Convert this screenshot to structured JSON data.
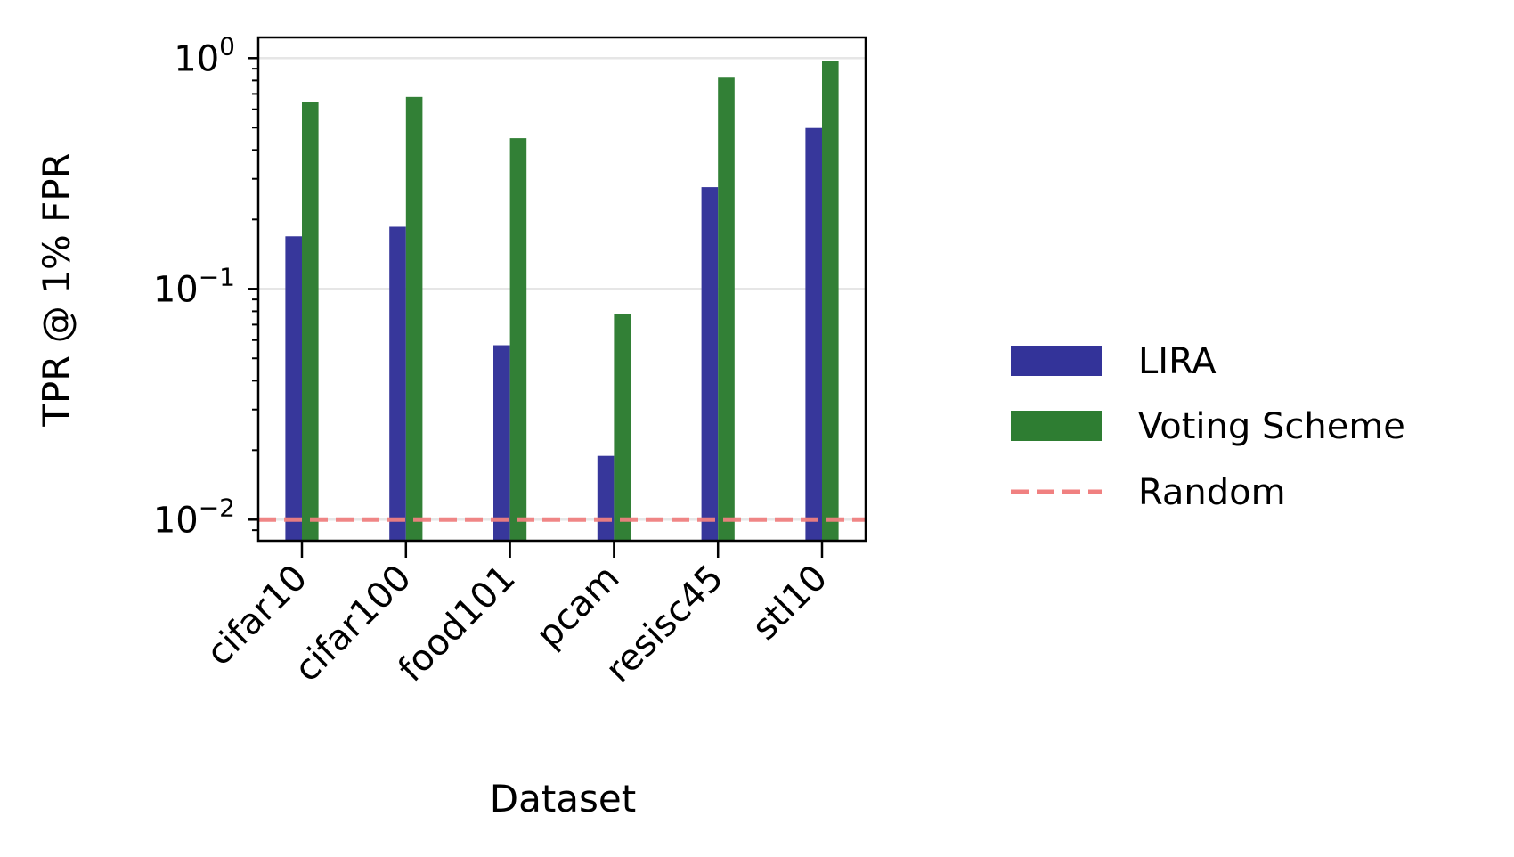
{
  "chart_data": {
    "type": "bar",
    "title": "",
    "xlabel": "Dataset",
    "ylabel": "TPR @ 1% FPR",
    "yscale": "log",
    "ylim": [
      0.0081,
      1.23
    ],
    "yticks": [
      {
        "value": 0.01,
        "base": "10",
        "exp": "−2"
      },
      {
        "value": 0.1,
        "base": "10",
        "exp": "−1"
      },
      {
        "value": 1,
        "base": "10",
        "exp": "0"
      }
    ],
    "grid": "horizontal major",
    "categories": [
      "cifar10",
      "cifar100",
      "food101",
      "pcam",
      "resisc45",
      "stl10"
    ],
    "series": [
      {
        "name": "LIRA",
        "color": "#333399",
        "values": [
          0.169,
          0.186,
          0.057,
          0.0189,
          0.276,
          0.498
        ]
      },
      {
        "name": "Voting Scheme",
        "color": "#2e7d32",
        "values": [
          0.648,
          0.679,
          0.45,
          0.0778,
          0.83,
          0.97
        ]
      }
    ],
    "reference_line": {
      "name": "Random",
      "value": 0.01,
      "color": "#f08080",
      "style": "dashed"
    },
    "legend": {
      "placement": "right outside",
      "entries": [
        "LIRA",
        "Voting Scheme",
        "Random"
      ]
    }
  }
}
